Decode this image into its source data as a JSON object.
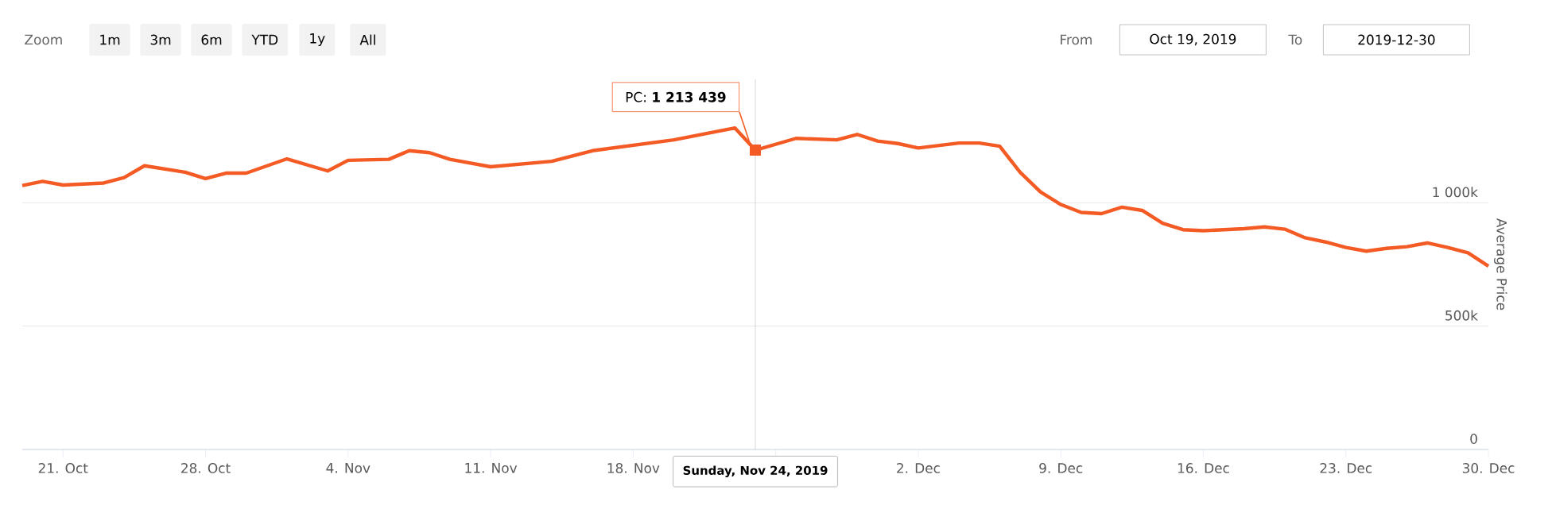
{
  "chart_data": {
    "type": "line",
    "ylabel": "Average Price",
    "legend": false,
    "grid": "y",
    "marker": "none",
    "line_style": "solid",
    "x": [
      "2019-10-19",
      "2019-10-20",
      "2019-10-21",
      "2019-10-23",
      "2019-10-24",
      "2019-10-25",
      "2019-10-27",
      "2019-10-28",
      "2019-10-29",
      "2019-10-30",
      "2019-11-01",
      "2019-11-03",
      "2019-11-04",
      "2019-11-06",
      "2019-11-07",
      "2019-11-08",
      "2019-11-09",
      "2019-11-11",
      "2019-11-14",
      "2019-11-16",
      "2019-11-20",
      "2019-11-23",
      "2019-11-24",
      "2019-11-26",
      "2019-11-28",
      "2019-11-29",
      "2019-11-30",
      "2019-12-01",
      "2019-12-02",
      "2019-12-04",
      "2019-12-05",
      "2019-12-06",
      "2019-12-07",
      "2019-12-08",
      "2019-12-09",
      "2019-12-10",
      "2019-12-11",
      "2019-12-12",
      "2019-12-13",
      "2019-12-14",
      "2019-12-15",
      "2019-12-16",
      "2019-12-18",
      "2019-12-19",
      "2019-12-20",
      "2019-12-21",
      "2019-12-22",
      "2019-12-23",
      "2019-12-24",
      "2019-12-25",
      "2019-12-26",
      "2019-12-27",
      "2019-12-28",
      "2019-12-29",
      "2019-12-30"
    ],
    "series": [
      {
        "color": "#f45b24",
        "values": [
          1070000,
          1087000,
          1072000,
          1080000,
          1102000,
          1150000,
          1124000,
          1098000,
          1120000,
          1120000,
          1178000,
          1129000,
          1172000,
          1176000,
          1211000,
          1203000,
          1176000,
          1146000,
          1168000,
          1211000,
          1255000,
          1303000,
          1213439,
          1261000,
          1255000,
          1277000,
          1250000,
          1240000,
          1222000,
          1242000,
          1242000,
          1229000,
          1124000,
          1044000,
          993000,
          961000,
          956000,
          982000,
          969000,
          917000,
          891000,
          887000,
          895000,
          902000,
          893000,
          858000,
          841000,
          819000,
          804000,
          815000,
          822000,
          837000,
          819000,
          797000,
          743000
        ]
      }
    ],
    "xlim": [
      "2019-10-19",
      "2019-12-30"
    ],
    "xticks": [
      {
        "value": "2019-10-21",
        "label": "21. Oct"
      },
      {
        "value": "2019-10-28",
        "label": "28. Oct"
      },
      {
        "value": "2019-11-04",
        "label": "4. Nov"
      },
      {
        "value": "2019-11-11",
        "label": "11. Nov"
      },
      {
        "value": "2019-11-18",
        "label": "18. Nov"
      },
      {
        "value": "2019-11-25",
        "label": null
      },
      {
        "value": "2019-12-02",
        "label": "2. Dec"
      },
      {
        "value": "2019-12-09",
        "label": "9. Dec"
      },
      {
        "value": "2019-12-16",
        "label": "16. Dec"
      },
      {
        "value": "2019-12-23",
        "label": "23. Dec"
      },
      {
        "value": "2019-12-30",
        "label": "30. Dec"
      }
    ],
    "ylim": [
      0,
      1500000
    ],
    "yticks": [
      {
        "value": 0,
        "label": "0"
      },
      {
        "value": 500000,
        "label": "500k"
      },
      {
        "value": 1000000,
        "label": "1 000k"
      }
    ],
    "ref_lines": [
      {
        "axis": "x",
        "value": "2019-11-24",
        "label": "Sunday, Nov 24, 2019",
        "color": "#cccccc"
      }
    ],
    "annotations": [
      "Zoom",
      "1m",
      "3m",
      "6m",
      "YTD",
      "1y",
      "All",
      "From",
      "Oct 19, 2019",
      "To",
      "2019-12-30",
      {
        "text": "PC: **1 213 439**",
        "x": "2019-11-24",
        "y": 1213439
      }
    ]
  }
}
